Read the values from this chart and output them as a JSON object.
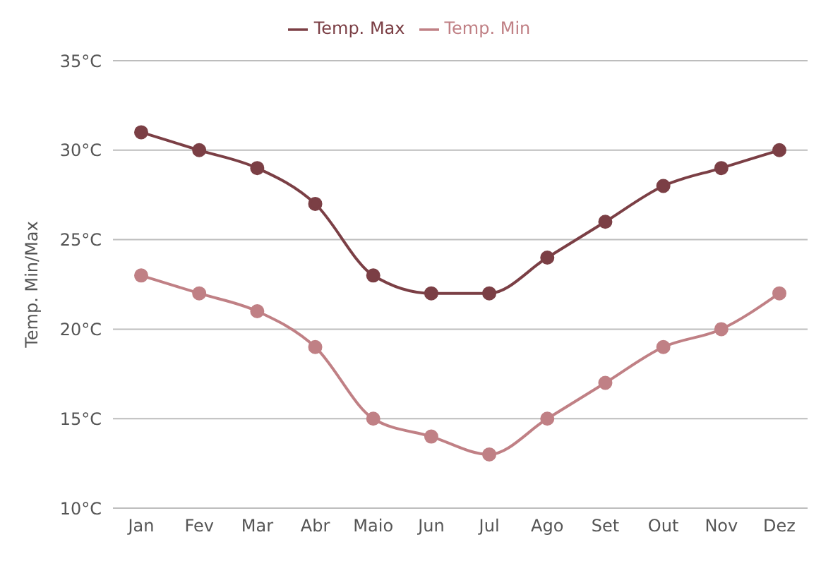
{
  "chart_data": {
    "type": "line",
    "ylabel": "Temp. Min/Max",
    "categories": [
      "Jan",
      "Fev",
      "Mar",
      "Abr",
      "Maio",
      "Jun",
      "Jul",
      "Ago",
      "Set",
      "Out",
      "Nov",
      "Dez"
    ],
    "series": [
      {
        "name": "Temp. Max",
        "color": "#7b3f45",
        "values": [
          31,
          30,
          29,
          27,
          23,
          22,
          22,
          24,
          26,
          28,
          29,
          30
        ]
      },
      {
        "name": "Temp. Min",
        "color": "#c08085",
        "values": [
          23,
          22,
          21,
          19,
          15,
          14,
          13,
          15,
          17,
          19,
          20,
          22
        ]
      }
    ],
    "ylim": [
      10,
      35
    ],
    "yticks": [
      {
        "value": 10,
        "label": "10°C"
      },
      {
        "value": 15,
        "label": "15°C"
      },
      {
        "value": 20,
        "label": "20°C"
      },
      {
        "value": 25,
        "label": "25°C"
      },
      {
        "value": 30,
        "label": "30°C"
      },
      {
        "value": 35,
        "label": "35°C"
      }
    ],
    "grid": "y",
    "legend": "top",
    "marker": "circle",
    "line_style": "solid"
  }
}
